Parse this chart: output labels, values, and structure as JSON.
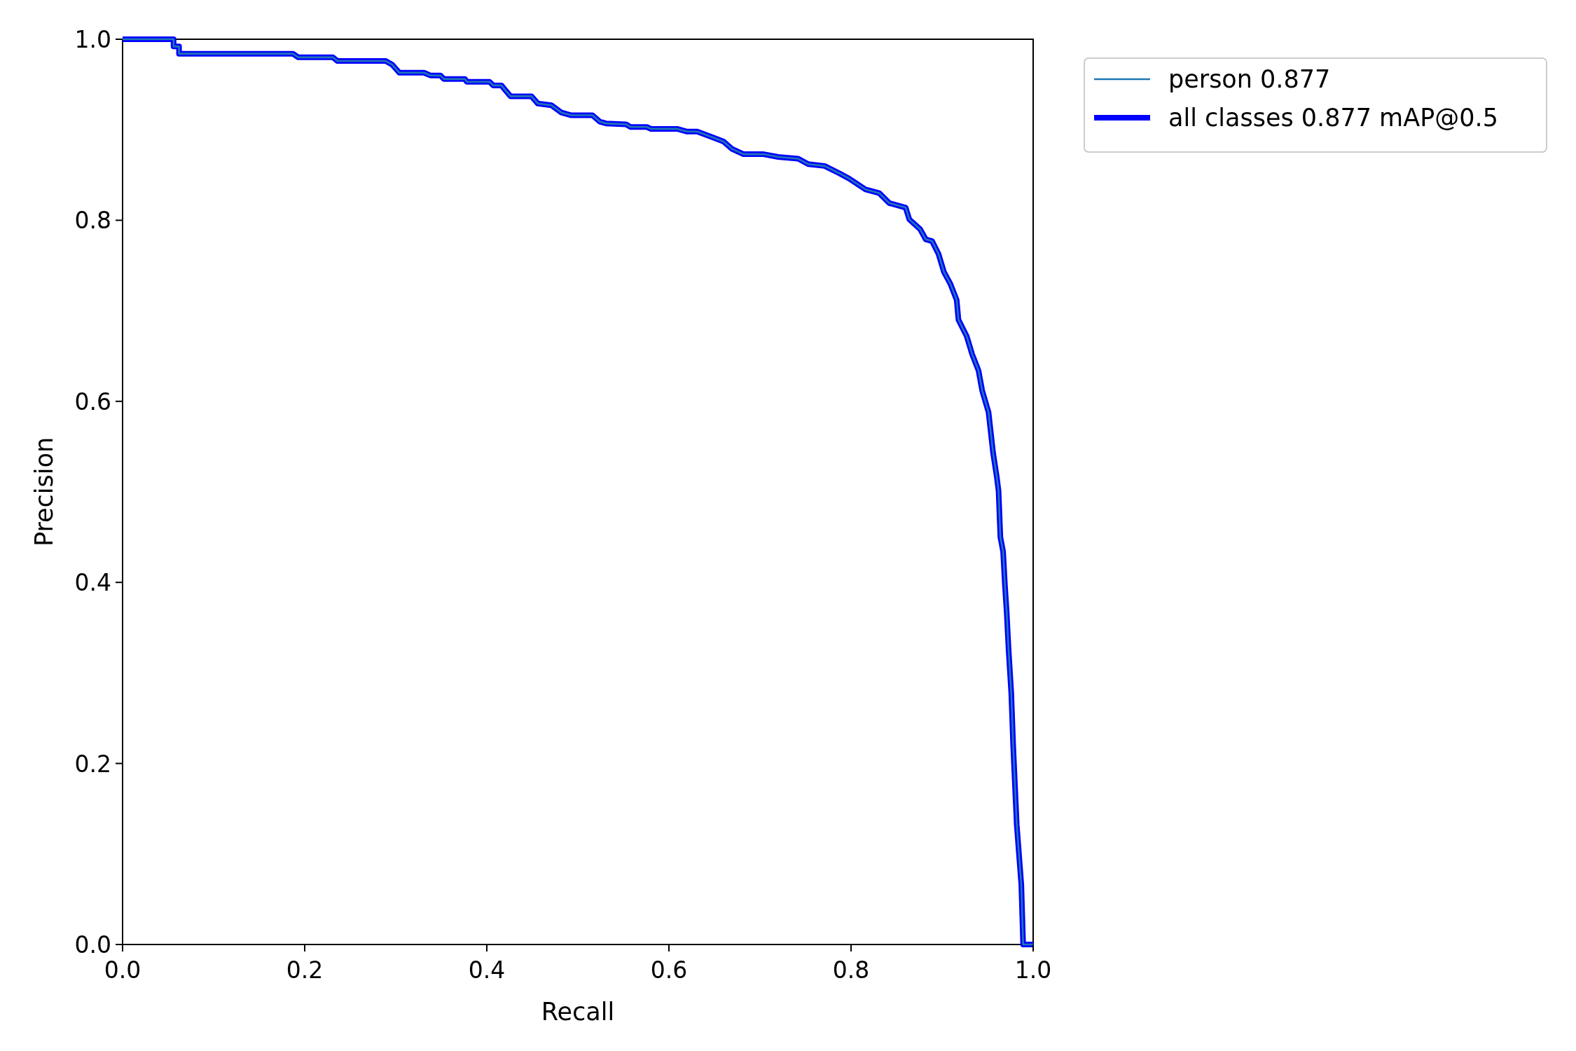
{
  "chart_data": {
    "type": "line",
    "xlabel": "Recall",
    "ylabel": "Precision",
    "xlim": [
      0,
      1
    ],
    "ylim": [
      0,
      1
    ],
    "xticks": [
      {
        "value": 0,
        "label": "0.0"
      },
      0.2,
      0.4,
      0.6,
      0.8,
      {
        "value": 1,
        "label": "1.0"
      }
    ],
    "yticks": [
      {
        "value": 0,
        "label": "0.0"
      },
      0.2,
      0.4,
      0.6,
      0.8,
      {
        "value": 1,
        "label": "1.0"
      }
    ],
    "legend": "top right",
    "grid": false,
    "marker": "none",
    "line_style": "solid",
    "x": [
      0,
      0.056,
      0.056,
      0.062,
      0.062,
      0.187,
      0.193,
      0.231,
      0.236,
      0.289,
      0.296,
      0.304,
      0.331,
      0.338,
      0.349,
      0.353,
      0.376,
      0.378,
      0.403,
      0.407,
      0.416,
      0.426,
      0.449,
      0.456,
      0.471,
      0.482,
      0.493,
      0.516,
      0.524,
      0.531,
      0.553,
      0.558,
      0.576,
      0.58,
      0.609,
      0.62,
      0.631,
      0.647,
      0.66,
      0.669,
      0.682,
      0.704,
      0.72,
      0.742,
      0.753,
      0.771,
      0.787,
      0.798,
      0.816,
      0.831,
      0.842,
      0.86,
      0.864,
      0.876,
      0.882,
      0.889,
      0.896,
      0.902,
      0.909,
      0.916,
      0.918,
      0.927,
      0.933,
      0.94,
      0.944,
      0.951,
      0.956,
      0.96,
      0.962,
      0.964,
      0.967,
      0.969,
      0.971,
      0.973,
      0.976,
      0.978,
      0.982,
      0.987,
      0.989,
      1.0
    ],
    "series": [
      {
        "name": "person 0.877",
        "color": "#1f77b4",
        "values": [
          1,
          1,
          0.992,
          0.992,
          0.984,
          0.984,
          0.98,
          0.98,
          0.976,
          0.976,
          0.972,
          0.963,
          0.963,
          0.96,
          0.96,
          0.956,
          0.956,
          0.953,
          0.953,
          0.949,
          0.949,
          0.937,
          0.937,
          0.929,
          0.927,
          0.919,
          0.916,
          0.916,
          0.909,
          0.907,
          0.906,
          0.903,
          0.903,
          0.901,
          0.901,
          0.898,
          0.898,
          0.892,
          0.887,
          0.879,
          0.873,
          0.873,
          0.87,
          0.868,
          0.862,
          0.86,
          0.852,
          0.846,
          0.834,
          0.83,
          0.819,
          0.814,
          0.801,
          0.79,
          0.779,
          0.777,
          0.763,
          0.743,
          0.73,
          0.712,
          0.69,
          0.672,
          0.652,
          0.634,
          0.612,
          0.588,
          0.543,
          0.517,
          0.501,
          0.45,
          0.434,
          0.397,
          0.366,
          0.326,
          0.277,
          0.221,
          0.132,
          0.066,
          0,
          0
        ]
      },
      {
        "name": "all classes 0.877 mAP@0.5",
        "color": "#0000ff",
        "values": [
          1,
          1,
          0.992,
          0.992,
          0.984,
          0.984,
          0.98,
          0.98,
          0.976,
          0.976,
          0.972,
          0.963,
          0.963,
          0.96,
          0.96,
          0.956,
          0.956,
          0.953,
          0.953,
          0.949,
          0.949,
          0.937,
          0.937,
          0.929,
          0.927,
          0.919,
          0.916,
          0.916,
          0.909,
          0.907,
          0.906,
          0.903,
          0.903,
          0.901,
          0.901,
          0.898,
          0.898,
          0.892,
          0.887,
          0.879,
          0.873,
          0.873,
          0.87,
          0.868,
          0.862,
          0.86,
          0.852,
          0.846,
          0.834,
          0.83,
          0.819,
          0.814,
          0.801,
          0.79,
          0.779,
          0.777,
          0.763,
          0.743,
          0.73,
          0.712,
          0.69,
          0.672,
          0.652,
          0.634,
          0.612,
          0.588,
          0.543,
          0.517,
          0.501,
          0.45,
          0.434,
          0.397,
          0.366,
          0.326,
          0.277,
          0.221,
          0.132,
          0.066,
          0,
          0
        ]
      }
    ]
  }
}
